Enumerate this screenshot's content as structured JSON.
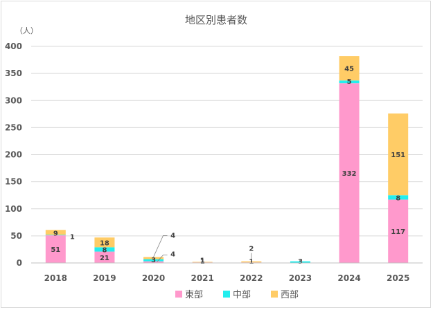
{
  "chart_data": {
    "type": "bar",
    "stacked": true,
    "title": "地区別患者数",
    "ylabel": "（人）",
    "xlabel": "",
    "ylim": [
      0,
      400
    ],
    "yticks": [
      0,
      50,
      100,
      150,
      200,
      250,
      300,
      350,
      400
    ],
    "grid": true,
    "legend_position": "bottom",
    "categories": [
      "2018",
      "2019",
      "2020",
      "2021",
      "2022",
      "2023",
      "2024",
      "2025"
    ],
    "series": [
      {
        "name": "東部",
        "color": "#ff99cc",
        "values": [
          51,
          21,
          3,
          1,
          1,
          0,
          332,
          117
        ]
      },
      {
        "name": "中部",
        "color": "#22eeee",
        "values": [
          1,
          8,
          4,
          0,
          0,
          3,
          5,
          8
        ]
      },
      {
        "name": "西部",
        "color": "#ffcc66",
        "values": [
          9,
          18,
          4,
          1,
          2,
          0,
          45,
          151
        ]
      }
    ],
    "data_labels": [
      {
        "category": "2018",
        "series": "東部",
        "text": "51"
      },
      {
        "category": "2018",
        "series": "中部",
        "text": "1"
      },
      {
        "category": "2018",
        "series": "西部",
        "text": "9"
      },
      {
        "category": "2019",
        "series": "東部",
        "text": "21"
      },
      {
        "category": "2019",
        "series": "中部",
        "text": "8"
      },
      {
        "category": "2019",
        "series": "西部",
        "text": "18"
      },
      {
        "category": "2020",
        "series": "東部",
        "text": "3"
      },
      {
        "category": "2020",
        "series": "中部",
        "text": "4"
      },
      {
        "category": "2020",
        "series": "西部",
        "text": "4"
      },
      {
        "category": "2021",
        "series": "東部",
        "text": "1"
      },
      {
        "category": "2021",
        "series": "西部",
        "text": "1"
      },
      {
        "category": "2022",
        "series": "東部",
        "text": "1"
      },
      {
        "category": "2022",
        "series": "西部",
        "text": "2"
      },
      {
        "category": "2023",
        "series": "中部",
        "text": "3"
      },
      {
        "category": "2024",
        "series": "東部",
        "text": "332"
      },
      {
        "category": "2024",
        "series": "中部",
        "text": "5"
      },
      {
        "category": "2024",
        "series": "西部",
        "text": "45"
      },
      {
        "category": "2025",
        "series": "東部",
        "text": "117"
      },
      {
        "category": "2025",
        "series": "中部",
        "text": "8"
      },
      {
        "category": "2025",
        "series": "西部",
        "text": "151"
      }
    ]
  }
}
